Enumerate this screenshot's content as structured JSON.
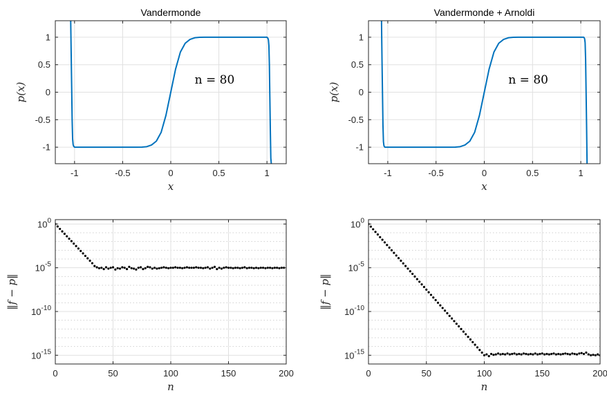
{
  "chart_data": [
    {
      "type": "line",
      "title": "Vandermonde",
      "xlabel": "x",
      "ylabel": "p(x)",
      "annotation": "n = 80",
      "xlim": [
        -1.2,
        1.2
      ],
      "ylim": [
        -1.3,
        1.3
      ],
      "xticks": [
        -1,
        -0.5,
        0,
        0.5,
        1
      ],
      "xtick_labels": [
        "-1",
        "-0.5",
        "0",
        "0.5",
        "1"
      ],
      "yticks": [
        1,
        0.5,
        0,
        -0.5,
        -1
      ],
      "ytick_labels": [
        "1",
        "0.5",
        "0",
        "-0.5",
        "-1"
      ],
      "grid": true,
      "line_color": "#0072bd",
      "series": [
        {
          "x": [
            -1.04,
            -1.035,
            -1.03,
            -1.025,
            -1.02,
            -1.015,
            -1.01,
            -1.005,
            -1.0,
            -0.95,
            -0.9,
            -0.8,
            -0.7,
            -0.6,
            -0.5,
            -0.4,
            -0.35,
            -0.3,
            -0.25,
            -0.2,
            -0.15,
            -0.1,
            -0.05,
            0,
            0.05,
            0.1,
            0.15,
            0.2,
            0.25,
            0.3,
            0.35,
            0.4,
            0.5,
            0.6,
            0.7,
            0.8,
            0.9,
            0.95,
            1.0,
            1.005,
            1.01,
            1.015,
            1.02,
            1.025,
            1.03,
            1.035,
            1.04,
            1.045
          ],
          "y": [
            1.3,
            0.7,
            0.1,
            -0.5,
            -0.85,
            -0.95,
            -0.98,
            -0.99,
            -1.0,
            -1.0,
            -1.0,
            -1.0,
            -1.0,
            -1.0,
            -1.0,
            -1.0,
            -1.0,
            -0.998,
            -0.99,
            -0.96,
            -0.89,
            -0.73,
            -0.42,
            0,
            0.42,
            0.73,
            0.89,
            0.96,
            0.99,
            0.998,
            1.0,
            1.0,
            1.0,
            1.0,
            1.0,
            1.0,
            1.0,
            1.0,
            1.0,
            0.99,
            0.98,
            0.95,
            0.85,
            0.5,
            -0.1,
            -0.7,
            -1.2,
            -1.3
          ]
        }
      ]
    },
    {
      "type": "line",
      "title": "Vandermonde + Arnoldi",
      "xlabel": "x",
      "ylabel": "p(x)",
      "annotation": "n = 80",
      "xlim": [
        -1.2,
        1.2
      ],
      "ylim": [
        -1.3,
        1.3
      ],
      "xticks": [
        -1,
        -0.5,
        0,
        0.5,
        1
      ],
      "xtick_labels": [
        "-1",
        "-0.5",
        "0",
        "0.5",
        "1"
      ],
      "yticks": [
        1,
        0.5,
        0,
        -0.5,
        -1
      ],
      "ytick_labels": [
        "1",
        "0.5",
        "0",
        "-0.5",
        "-1"
      ],
      "grid": true,
      "line_color": "#0072bd",
      "series": [
        {
          "x": [
            -1.065,
            -1.06,
            -1.055,
            -1.05,
            -1.045,
            -1.04,
            -1.035,
            -1.03,
            -1.0,
            -0.95,
            -0.9,
            -0.8,
            -0.7,
            -0.6,
            -0.5,
            -0.4,
            -0.35,
            -0.3,
            -0.25,
            -0.2,
            -0.15,
            -0.1,
            -0.05,
            0,
            0.05,
            0.1,
            0.15,
            0.2,
            0.25,
            0.3,
            0.35,
            0.4,
            0.5,
            0.6,
            0.7,
            0.8,
            0.9,
            1.0,
            1.03,
            1.035,
            1.04,
            1.045,
            1.05,
            1.055,
            1.06,
            1.065
          ],
          "y": [
            1.3,
            0.6,
            0.0,
            -0.6,
            -0.9,
            -0.97,
            -0.99,
            -1.0,
            -1.0,
            -1.0,
            -1.0,
            -1.0,
            -1.0,
            -1.0,
            -1.0,
            -1.0,
            -1.0,
            -0.998,
            -0.99,
            -0.96,
            -0.89,
            -0.73,
            -0.42,
            0,
            0.42,
            0.73,
            0.89,
            0.96,
            0.99,
            0.998,
            1.0,
            1.0,
            1.0,
            1.0,
            1.0,
            1.0,
            1.0,
            1.0,
            1.0,
            0.99,
            0.97,
            0.9,
            0.6,
            0.0,
            -0.6,
            -1.3
          ]
        }
      ]
    },
    {
      "type": "scatter",
      "title": "",
      "xlabel": "n",
      "ylabel": "‖f − p‖",
      "xlim": [
        0,
        200
      ],
      "ylim_log10": [
        -16,
        0.5
      ],
      "yscale": "log",
      "xticks": [
        0,
        50,
        100,
        150,
        200
      ],
      "xtick_labels": [
        "0",
        "50",
        "100",
        "150",
        "200"
      ],
      "yticks_log10": [
        0,
        -5,
        -10,
        -15
      ],
      "ytick_base": "10",
      "ytick_exponents": [
        "0",
        "-5",
        "-10",
        "-15"
      ],
      "grid": true,
      "marker_color": "#000000",
      "series": [
        {
          "n_start": 0,
          "n_step": 2,
          "log10_values": [
            0,
            -0.28,
            -0.56,
            -0.84,
            -1.12,
            -1.4,
            -1.68,
            -1.96,
            -2.24,
            -2.52,
            -2.8,
            -3.08,
            -3.36,
            -3.64,
            -3.92,
            -4.2,
            -4.48,
            -4.8,
            -4.95,
            -5.05,
            -5.0,
            -5.15,
            -4.95,
            -5.1,
            -5.0,
            -4.95,
            -5.2,
            -5.05,
            -5.1,
            -4.95,
            -5.0,
            -5.15,
            -4.9,
            -5.05,
            -5.1,
            -5.2,
            -5.0,
            -4.95,
            -5.15,
            -5.05,
            -4.9,
            -4.95,
            -5.1,
            -5.0,
            -5.1,
            -5.05,
            -5.0,
            -4.95,
            -5.0,
            -5.05,
            -5.0,
            -5.0,
            -4.95,
            -5.0,
            -5.0,
            -5.05,
            -5.0,
            -4.95,
            -5.0,
            -5.0,
            -5.0,
            -4.95,
            -5.0,
            -5.0,
            -5.05,
            -5.0,
            -4.95,
            -5.1,
            -5.0,
            -4.9,
            -5.15,
            -5.0,
            -5.1,
            -5.0,
            -4.95,
            -5.0,
            -5.0,
            -5.05,
            -5.0,
            -5.0,
            -5.05,
            -5.0,
            -4.95,
            -5.05,
            -5.0,
            -5.0,
            -5.05,
            -5.0,
            -5.05,
            -5.0,
            -5.0,
            -5.05,
            -5.0,
            -5.0,
            -5.05,
            -5.0,
            -5.0,
            -5.05,
            -5.0,
            -5.0
          ]
        }
      ]
    },
    {
      "type": "scatter",
      "title": "",
      "xlabel": "n",
      "ylabel": "‖f − p‖",
      "xlim": [
        0,
        200
      ],
      "ylim_log10": [
        -16,
        0.5
      ],
      "yscale": "log",
      "xticks": [
        0,
        50,
        100,
        150,
        200
      ],
      "xtick_labels": [
        "0",
        "50",
        "100",
        "150",
        "200"
      ],
      "yticks_log10": [
        0,
        -5,
        -10,
        -15
      ],
      "ytick_base": "10",
      "ytick_exponents": [
        "0",
        "-5",
        "-10",
        "-15"
      ],
      "grid": true,
      "marker_color": "#000000",
      "series": [
        {
          "n_start": 0,
          "n_step": 2,
          "log10_values": [
            0,
            -0.3,
            -0.6,
            -0.9,
            -1.2,
            -1.5,
            -1.8,
            -2.1,
            -2.4,
            -2.7,
            -3.0,
            -3.3,
            -3.6,
            -3.9,
            -4.2,
            -4.5,
            -4.8,
            -5.1,
            -5.4,
            -5.7,
            -6.0,
            -6.3,
            -6.6,
            -6.9,
            -7.2,
            -7.5,
            -7.8,
            -8.1,
            -8.4,
            -8.7,
            -9.0,
            -9.3,
            -9.6,
            -9.9,
            -10.2,
            -10.5,
            -10.8,
            -11.1,
            -11.4,
            -11.7,
            -12.0,
            -12.3,
            -12.6,
            -12.9,
            -13.2,
            -13.5,
            -13.8,
            -14.1,
            -14.4,
            -14.7,
            -15.0,
            -14.9,
            -15.1,
            -14.85,
            -14.95,
            -14.9,
            -14.8,
            -14.9,
            -14.85,
            -14.9,
            -14.8,
            -14.9,
            -14.85,
            -14.8,
            -14.9,
            -14.85,
            -14.9,
            -14.8,
            -14.85,
            -14.9,
            -14.85,
            -14.9,
            -14.8,
            -14.9,
            -14.85,
            -14.8,
            -14.9,
            -14.85,
            -14.9,
            -14.85,
            -14.8,
            -14.9,
            -14.85,
            -14.9,
            -14.85,
            -14.8,
            -14.85,
            -14.9,
            -14.8,
            -14.85,
            -14.9,
            -14.8,
            -14.75,
            -14.85,
            -14.7,
            -14.9,
            -15.0,
            -14.95,
            -15.0,
            -14.9,
            -15.0
          ]
        }
      ]
    }
  ]
}
